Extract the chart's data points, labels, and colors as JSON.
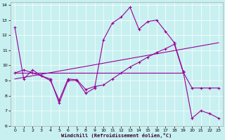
{
  "bg_color": "#c8f0f0",
  "line_color": "#990099",
  "xlabel": "Windchill (Refroidissement éolien,°C)",
  "xlim": [
    -0.5,
    23.5
  ],
  "ylim": [
    6,
    14.2
  ],
  "yticks": [
    6,
    7,
    8,
    9,
    10,
    11,
    12,
    13,
    14
  ],
  "xticks": [
    0,
    1,
    2,
    3,
    4,
    5,
    6,
    7,
    8,
    9,
    10,
    11,
    12,
    13,
    14,
    15,
    16,
    17,
    18,
    19,
    20,
    21,
    22,
    23
  ],
  "lines": [
    {
      "x": [
        0,
        1,
        2,
        3,
        4,
        5,
        6,
        7,
        8,
        9,
        10,
        11,
        12,
        13,
        14,
        15,
        16,
        17,
        18,
        19,
        20,
        21,
        22,
        23
      ],
      "y": [
        12.5,
        9.1,
        9.7,
        9.3,
        9.1,
        7.5,
        9.0,
        9.0,
        8.15,
        8.5,
        11.7,
        12.8,
        13.2,
        13.85,
        12.4,
        12.9,
        13.0,
        12.25,
        11.5,
        9.6,
        6.5,
        7.0,
        6.8,
        6.5
      ]
    },
    {
      "x": [
        0,
        1,
        2,
        3,
        4,
        5,
        6,
        7,
        8,
        9,
        10,
        11,
        12,
        13,
        14,
        15,
        16,
        17,
        18,
        19,
        20,
        21,
        22,
        23
      ],
      "y": [
        9.5,
        9.7,
        9.5,
        9.3,
        9.0,
        7.7,
        9.1,
        9.05,
        8.4,
        8.6,
        8.7,
        9.1,
        9.5,
        9.9,
        10.2,
        10.55,
        10.85,
        11.1,
        11.4,
        9.55,
        8.5,
        8.5,
        8.5,
        8.5
      ]
    },
    {
      "x": [
        0,
        23
      ],
      "y": [
        9.1,
        11.5
      ]
    },
    {
      "x": [
        0,
        19
      ],
      "y": [
        9.5,
        9.5
      ]
    }
  ]
}
